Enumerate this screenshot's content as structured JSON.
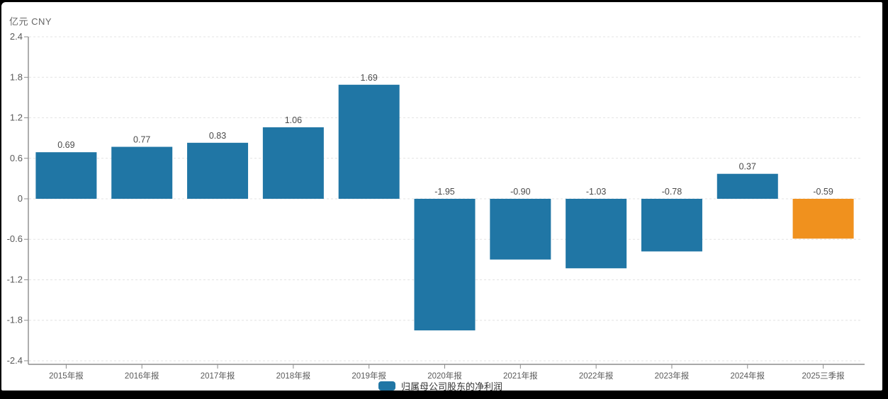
{
  "frame": {
    "background_color": "#000000",
    "surface_color": "#ffffff"
  },
  "axis_unit": "亿元 CNY",
  "legend": {
    "label": "归属母公司股东的净利润",
    "swatch_color": "#2076A5"
  },
  "chart_data": {
    "type": "bar",
    "title": "",
    "unit_label": "亿元 CNY",
    "categories": [
      "2015年报",
      "2016年报",
      "2017年报",
      "2018年报",
      "2019年报",
      "2020年报",
      "2021年报",
      "2022年报",
      "2023年报",
      "2024年报",
      "2025三季报"
    ],
    "series": [
      {
        "name": "归属母公司股东的净利润",
        "color": "#2076A5",
        "values": [
          0.69,
          0.77,
          0.83,
          1.06,
          1.69,
          -1.95,
          -0.9,
          -1.03,
          -0.78,
          0.37,
          -0.59
        ]
      }
    ],
    "highlight": {
      "index": 10,
      "color": "#F0911E"
    },
    "ylim": [
      -2.4,
      2.4
    ],
    "y_ticks": [
      2.4,
      1.8,
      1.2,
      0.6,
      0,
      -0.6,
      -1.2,
      -1.8,
      -2.4
    ],
    "value_label_decimals": 2,
    "grid": "dashed-horizontal",
    "legend_position": "bottom-center",
    "colors": {
      "axis_line": "#8c8c8c",
      "grid_line": "#e3e3e3",
      "tick_text": "#5a5a5a",
      "value_text": "#4a4a4a",
      "unit_text": "#666666"
    }
  }
}
